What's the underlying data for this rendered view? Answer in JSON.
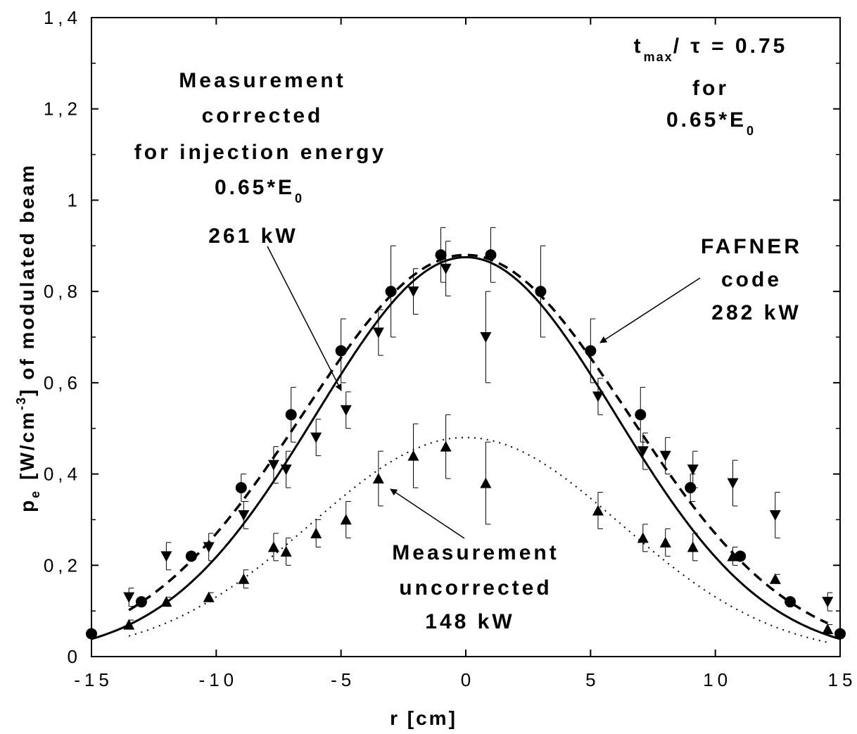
{
  "chart_data": {
    "type": "scatter",
    "xlabel": "r  [cm]",
    "ylabel": {
      "p": "p",
      "p_sub": "e",
      "unit_a": "[W/cm",
      "unit_sup": "-3",
      "unit_b": "]  of  modulated  beam"
    },
    "xlim": [
      -15,
      15
    ],
    "ylim": [
      0,
      1.4
    ],
    "x_ticks": [
      "-15",
      "-10",
      "-5",
      "0",
      "5",
      "10",
      "15"
    ],
    "y_ticks": [
      "0",
      "0,2",
      "0,4",
      "0,6",
      "0,8",
      "1",
      "1,2",
      "1,4"
    ],
    "grid": false,
    "series": [
      {
        "name": "FAFNER code 282 kW",
        "marker": "circle",
        "x": [
          -15,
          -13,
          -11,
          -9,
          -7,
          -5,
          -3,
          -1,
          1,
          3,
          5,
          7,
          9,
          11,
          13,
          15
        ],
        "y": [
          0.05,
          0.12,
          0.22,
          0.37,
          0.53,
          0.67,
          0.8,
          0.88,
          0.88,
          0.8,
          0.67,
          0.53,
          0.37,
          0.22,
          0.12,
          0.05
        ],
        "yerr": [
          0,
          0,
          0,
          0.03,
          0.06,
          0.07,
          0.1,
          0.06,
          0.06,
          0.1,
          0.07,
          0.06,
          0.03,
          0,
          0,
          0
        ]
      },
      {
        "name": "Measurement corrected for injection energy 0.65*E0 261 kW",
        "marker": "triangle-down",
        "x": [
          -13.5,
          -12.0,
          -10.3,
          -8.9,
          -7.7,
          -7.2,
          -6.0,
          -4.8,
          -3.5,
          -2.1,
          -0.8,
          0.8,
          5.3,
          7.1,
          8.0,
          9.1,
          10.7,
          12.4,
          14.5
        ],
        "y": [
          0.13,
          0.22,
          0.24,
          0.31,
          0.42,
          0.41,
          0.48,
          0.54,
          0.71,
          0.8,
          0.85,
          0.7,
          0.57,
          0.45,
          0.44,
          0.41,
          0.38,
          0.31,
          0.12
        ],
        "yerr": [
          0.02,
          0.03,
          0.03,
          0.03,
          0.04,
          0.04,
          0.04,
          0.04,
          0.05,
          0.05,
          0.06,
          0.1,
          0.04,
          0.04,
          0.04,
          0.04,
          0.05,
          0.05,
          0.02
        ]
      },
      {
        "name": "Measurement uncorrected 148 kW",
        "marker": "triangle-up",
        "x": [
          -13.5,
          -12.0,
          -10.3,
          -8.9,
          -7.7,
          -7.2,
          -6.0,
          -4.8,
          -3.5,
          -2.1,
          -0.8,
          0.8,
          5.3,
          7.1,
          8.0,
          9.1,
          10.7,
          12.4,
          14.5
        ],
        "y": [
          0.07,
          0.12,
          0.13,
          0.17,
          0.24,
          0.23,
          0.27,
          0.3,
          0.39,
          0.44,
          0.46,
          0.38,
          0.32,
          0.26,
          0.25,
          0.24,
          0.22,
          0.17,
          0.06
        ],
        "yerr": [
          0.01,
          0.01,
          0.01,
          0.02,
          0.03,
          0.03,
          0.03,
          0.04,
          0.06,
          0.07,
          0.07,
          0.09,
          0.04,
          0.03,
          0.03,
          0.03,
          0.02,
          0.01,
          0.01
        ]
      }
    ],
    "curves": [
      {
        "style": "solid",
        "amplitude": 0.875,
        "center": 0,
        "sigma": 6.0
      },
      {
        "style": "dashed",
        "amplitude": 0.88,
        "center": 0,
        "sigma": 6.5,
        "x_range": [
          -13.5,
          14.5
        ]
      },
      {
        "style": "dotted",
        "amplitude": 0.48,
        "center": 0,
        "sigma": 6.2,
        "x_range": [
          -13.5,
          14.5
        ]
      }
    ],
    "annotations": {
      "top_right": {
        "t": "t",
        "t_sub": "max",
        "rest": "/ τ  =  0.75",
        "line2": "for",
        "line3": "0.65*E",
        "line3_sub": "0"
      },
      "corrected": {
        "line1": "Measurement",
        "line2": "corrected",
        "line3": "for  injection  energy",
        "line4": "0.65*E",
        "line4_sub": "0",
        "line5": "261  kW"
      },
      "fafner": {
        "line1": "FAFNER",
        "line2": "code",
        "line3": "282  kW"
      },
      "uncorrected": {
        "line1": "Measurement",
        "line2": "uncorrected",
        "line3": "148  kW"
      }
    }
  }
}
